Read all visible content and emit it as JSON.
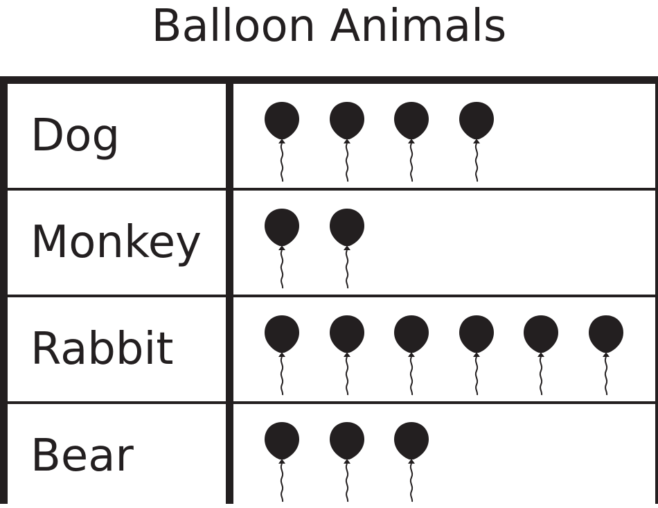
{
  "chart_data": {
    "type": "table",
    "title": "Balloon Animals",
    "categories": [
      "Dog",
      "Monkey",
      "Rabbit",
      "Bear"
    ],
    "values": [
      4,
      2,
      6,
      3
    ],
    "icon": "balloon-icon",
    "icon_color": "#231f20"
  }
}
